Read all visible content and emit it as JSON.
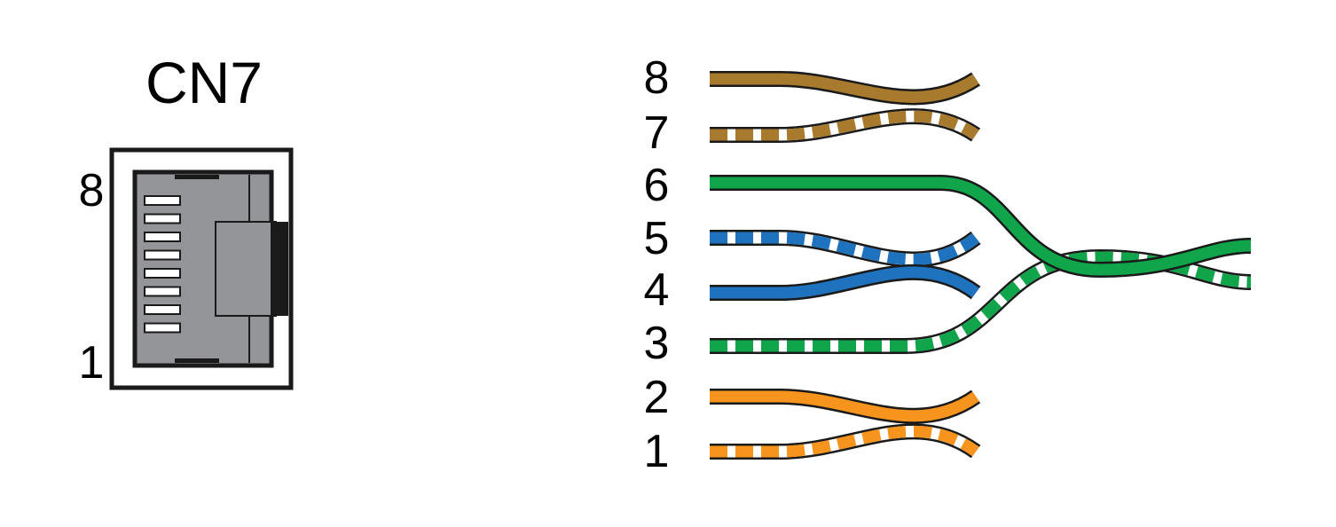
{
  "connector": {
    "name": "CN7",
    "pin_top": "8",
    "pin_bottom": "1"
  },
  "wires": [
    {
      "pin": "8",
      "color": "#A87A2E",
      "striped": false
    },
    {
      "pin": "7",
      "color": "#A87A2E",
      "striped": true
    },
    {
      "pin": "6",
      "color": "#10A54A",
      "striped": false
    },
    {
      "pin": "5",
      "color": "#1E72BE",
      "striped": true
    },
    {
      "pin": "4",
      "color": "#1E72BE",
      "striped": false
    },
    {
      "pin": "3",
      "color": "#10A54A",
      "striped": true
    },
    {
      "pin": "2",
      "color": "#F7941D",
      "striped": false
    },
    {
      "pin": "1",
      "color": "#F7941D",
      "striped": true
    }
  ],
  "colors": {
    "outline": "#1A1A1A",
    "jack_body": "#939598",
    "stripe": "#FFFFFF"
  }
}
